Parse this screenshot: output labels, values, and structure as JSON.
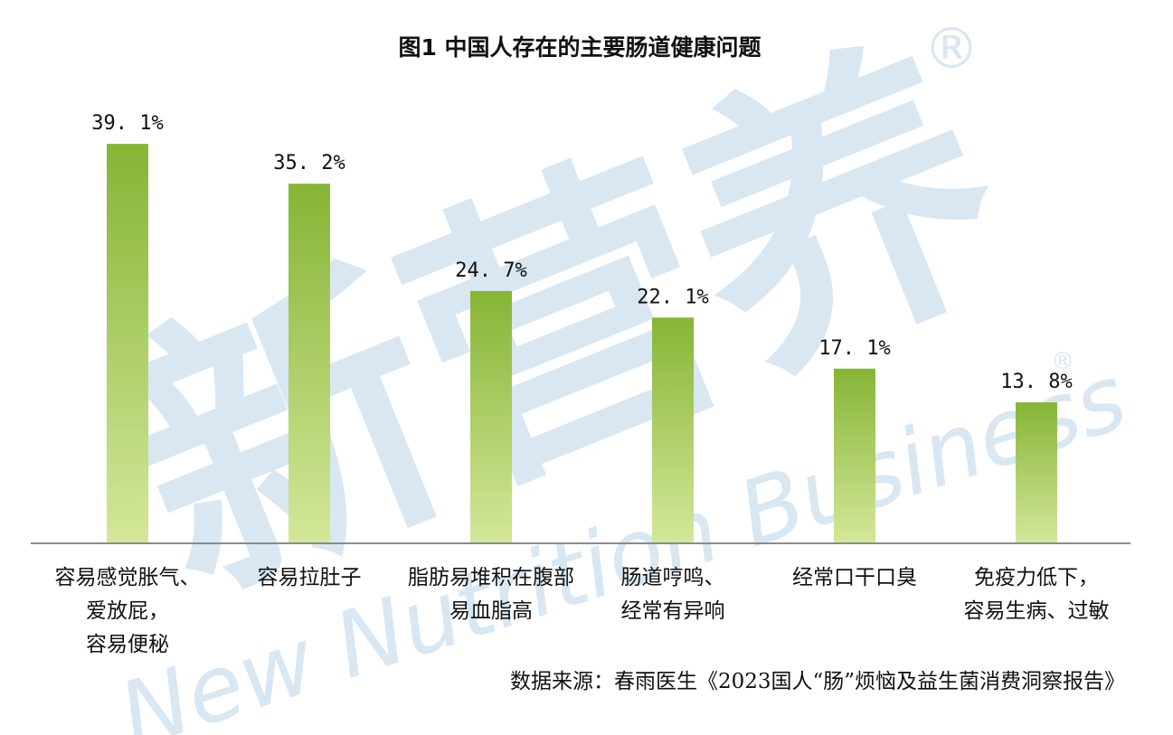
{
  "chart_data": {
    "type": "bar",
    "title": "图1 中国人存在的主要肠道健康问题",
    "categories": [
      [
        "容易感觉胀气、",
        "爱放屁，",
        "容易便秘"
      ],
      [
        "容易拉肚子"
      ],
      [
        "脂肪易堆积在腹部",
        "易血脂高"
      ],
      [
        "肠道哼鸣、",
        "经常有异响"
      ],
      [
        "经常口干口臭"
      ],
      [
        "免疫力低下，",
        "容易生病、过敏"
      ]
    ],
    "values": [
      39.1,
      35.2,
      24.7,
      22.1,
      17.1,
      13.8
    ],
    "value_labels": [
      "39. 1%",
      "35. 2%",
      "24. 7%",
      "22. 1%",
      "17. 1%",
      "13. 8%"
    ],
    "ylim": [
      0,
      44
    ],
    "xlabel": "",
    "ylabel": "",
    "grid": false,
    "bar_gradient": {
      "top": "#86b535",
      "bottom": "#d4e79a"
    },
    "axis_color": "#8c8c8c"
  },
  "source": "数据来源：春雨医生《2023国人“肠”烦恼及益生菌消费洞察报告》",
  "watermark": {
    "brand": "新营养",
    "english": "New Nutrition Business",
    "mark": "®",
    "color": "#d6e6f2"
  }
}
